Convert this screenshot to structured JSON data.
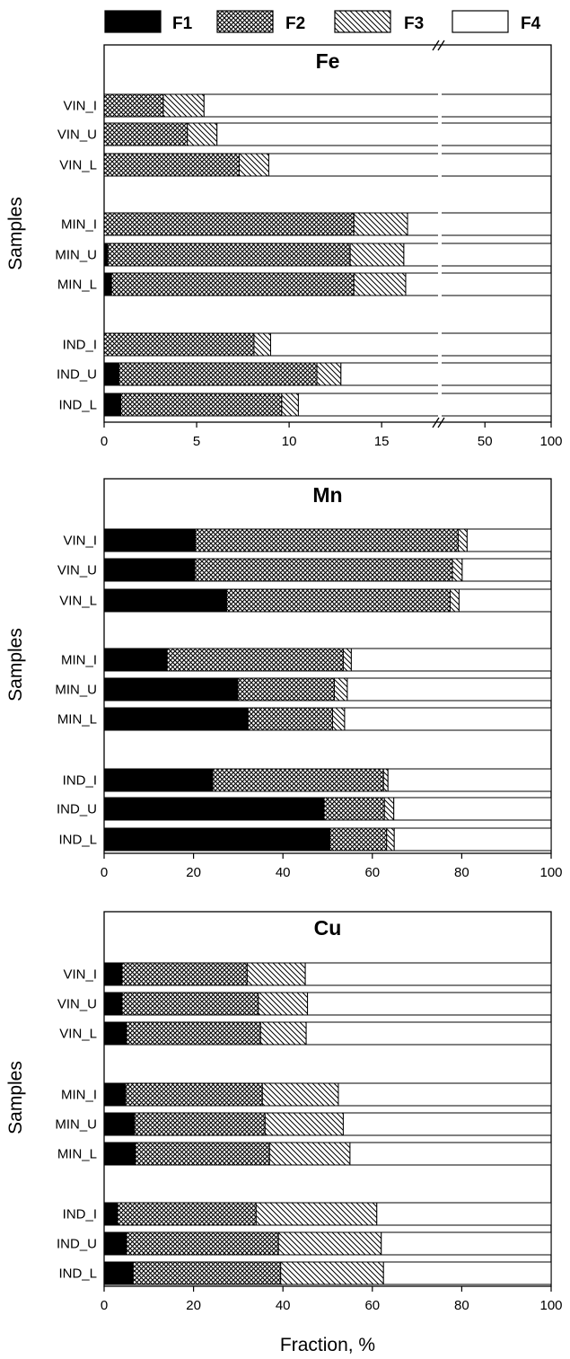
{
  "legend": {
    "F1": "F1",
    "F2": "F2",
    "F3": "F3",
    "F4": "F4"
  },
  "chart_data": [
    {
      "type": "bar",
      "orientation": "horizontal",
      "stacked": true,
      "title": "Fe",
      "ylabel": "Samples",
      "xlabel": "",
      "x_broken": true,
      "x_break_from": 18,
      "xticks": [
        0,
        5,
        10,
        15,
        50,
        100
      ],
      "xlim": [
        0,
        100
      ],
      "categories": [
        "VIN_I",
        "VIN_U",
        "VIN_L",
        "MIN_I",
        "MIN_U",
        "MIN_L",
        "IND_I",
        "IND_U",
        "IND_L"
      ],
      "series": [
        {
          "name": "F1",
          "values": [
            0,
            0,
            0,
            0,
            0.2,
            0.4,
            0,
            0.8,
            0.9
          ]
        },
        {
          "name": "F2",
          "values": [
            3.2,
            4.5,
            7.3,
            13.5,
            13.1,
            13.1,
            8.1,
            10.7,
            8.7
          ]
        },
        {
          "name": "F3",
          "values": [
            2.2,
            1.6,
            1.6,
            2.9,
            2.9,
            2.8,
            0.9,
            1.3,
            0.9
          ]
        },
        {
          "name": "F4",
          "values": [
            94.6,
            93.9,
            91.1,
            83.6,
            83.8,
            83.7,
            91.0,
            87.2,
            89.5
          ]
        }
      ]
    },
    {
      "type": "bar",
      "orientation": "horizontal",
      "stacked": true,
      "title": "Mn",
      "ylabel": "Samples",
      "xlabel": "",
      "xticks": [
        0,
        20,
        40,
        60,
        80,
        100
      ],
      "xlim": [
        0,
        100
      ],
      "categories": [
        "VIN_I",
        "VIN_U",
        "VIN_L",
        "MIN_I",
        "MIN_U",
        "MIN_L",
        "IND_I",
        "IND_U",
        "IND_L"
      ],
      "series": [
        {
          "name": "F1",
          "values": [
            20.4,
            20.3,
            27.4,
            14.1,
            29.9,
            32.2,
            24.3,
            49.2,
            50.5
          ]
        },
        {
          "name": "F2",
          "values": [
            58.8,
            57.6,
            50.0,
            39.4,
            21.6,
            18.9,
            38.2,
            13.5,
            12.7
          ]
        },
        {
          "name": "F3",
          "values": [
            2.0,
            2.2,
            2.0,
            1.8,
            2.9,
            2.7,
            1.0,
            2.1,
            1.7
          ]
        },
        {
          "name": "F4",
          "values": [
            18.8,
            19.9,
            20.6,
            44.7,
            45.6,
            46.2,
            36.5,
            35.2,
            35.1
          ]
        }
      ]
    },
    {
      "type": "bar",
      "orientation": "horizontal",
      "stacked": true,
      "title": "Cu",
      "ylabel": "Samples",
      "xlabel": "Fraction, %",
      "xticks": [
        0,
        20,
        40,
        60,
        80,
        100
      ],
      "xlim": [
        0,
        100
      ],
      "categories": [
        "VIN_I",
        "VIN_U",
        "VIN_L",
        "MIN_I",
        "MIN_U",
        "MIN_L",
        "IND_I",
        "IND_U",
        "IND_L"
      ],
      "series": [
        {
          "name": "F1",
          "values": [
            4.0,
            4.0,
            5.0,
            4.8,
            6.8,
            7.0,
            3.0,
            5.0,
            6.5
          ]
        },
        {
          "name": "F2",
          "values": [
            28.0,
            30.5,
            30.0,
            30.6,
            29.2,
            30.0,
            31.0,
            34.0,
            33.0
          ]
        },
        {
          "name": "F3",
          "values": [
            13.0,
            11.0,
            10.2,
            17.0,
            17.5,
            18.0,
            27.0,
            23.0,
            23.0
          ]
        },
        {
          "name": "F4",
          "values": [
            55.0,
            54.5,
            54.8,
            47.6,
            46.5,
            45.0,
            39.0,
            38.0,
            37.5
          ]
        }
      ]
    }
  ]
}
